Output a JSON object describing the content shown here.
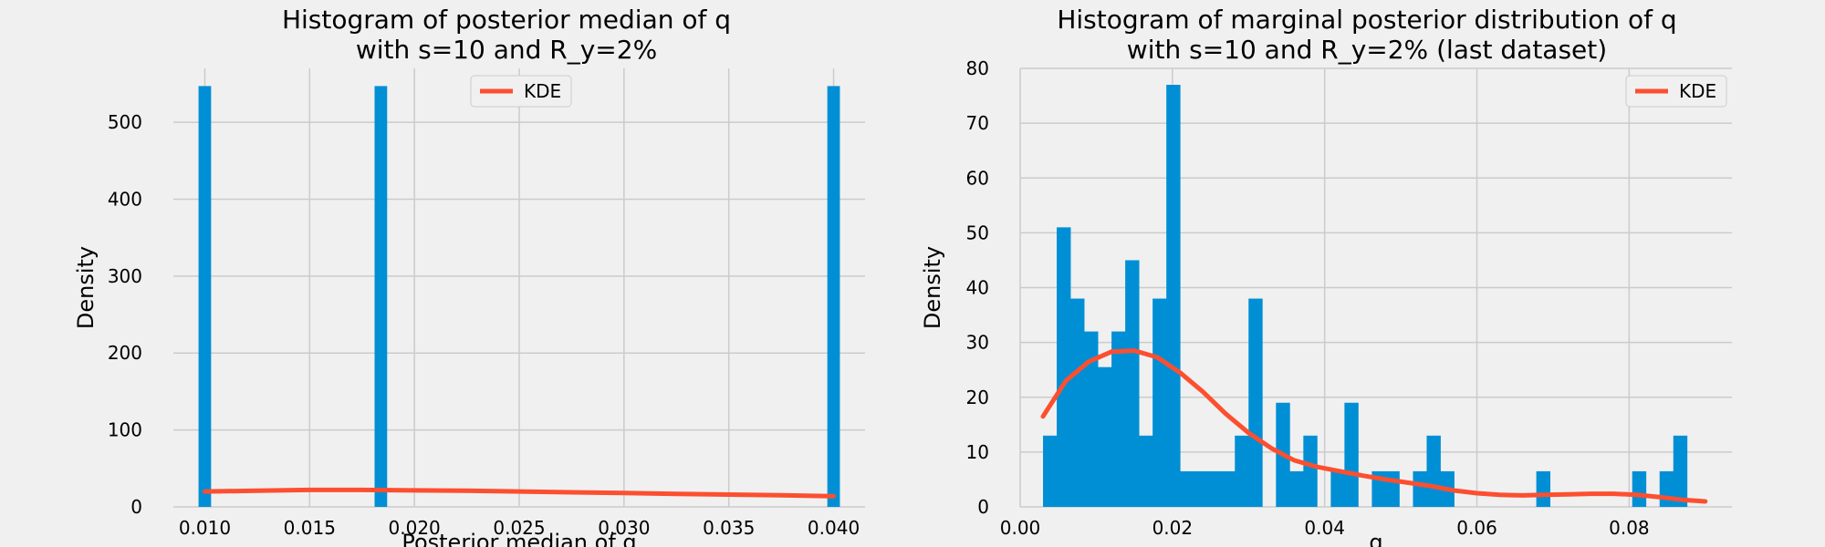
{
  "colors": {
    "background": "#f0f0f0",
    "bar": "#008fd5",
    "kde": "#fc4f30",
    "grid": "#cbcbcb"
  },
  "chart_data": [
    {
      "type": "bar",
      "title": "Histogram of posterior median of q\nwith s=10 and R_y=2%",
      "xlabel": "Posterior median of q",
      "ylabel": "Density",
      "xlim": [
        0.0085,
        0.0415
      ],
      "ylim": [
        0,
        570
      ],
      "xticks": [
        0.01,
        0.015,
        0.02,
        0.025,
        0.03,
        0.035,
        0.04
      ],
      "xtick_labels": [
        "0.010",
        "0.015",
        "0.020",
        "0.025",
        "0.030",
        "0.035",
        "0.040"
      ],
      "yticks": [
        0,
        100,
        200,
        300,
        400,
        500
      ],
      "ytick_labels": [
        "0",
        "100",
        "200",
        "300",
        "400",
        "500"
      ],
      "bin_width": 0.0006,
      "bars": [
        {
          "x": 0.01,
          "value": 547
        },
        {
          "x": 0.0184,
          "value": 547
        },
        {
          "x": 0.04,
          "value": 547
        }
      ],
      "kde": {
        "name": "KDE",
        "x": [
          0.01,
          0.0125,
          0.015,
          0.0175,
          0.02,
          0.0225,
          0.025,
          0.0275,
          0.03,
          0.0325,
          0.035,
          0.0375,
          0.04
        ],
        "y": [
          20,
          21,
          22,
          22,
          21.5,
          21,
          20,
          19,
          18,
          17,
          16,
          15,
          14
        ]
      },
      "legend": "upper center",
      "grid": true
    },
    {
      "type": "bar",
      "title": "Histogram of marginal posterior distribution of q\nwith s=10 and R_y=2% (last dataset)",
      "xlabel": "q",
      "ylabel": "Density",
      "xlim": [
        0.0,
        0.0935
      ],
      "ylim": [
        0,
        80
      ],
      "xticks": [
        0.0,
        0.02,
        0.04,
        0.06,
        0.08
      ],
      "xtick_labels": [
        "0.00",
        "0.02",
        "0.04",
        "0.06",
        "0.08"
      ],
      "yticks": [
        0,
        10,
        20,
        30,
        40,
        50,
        60,
        70,
        80
      ],
      "ytick_labels": [
        "0",
        "10",
        "20",
        "30",
        "40",
        "50",
        "60",
        "70",
        "80"
      ],
      "bin_start": 0.003,
      "bin_width": 0.0018,
      "values": [
        13,
        51,
        38,
        32,
        25.5,
        32,
        45,
        13,
        38,
        77,
        6.5,
        6.5,
        6.5,
        6.5,
        13,
        38,
        0,
        19,
        6.5,
        13,
        0,
        6.5,
        19,
        0,
        6.5,
        6.5,
        0,
        6.5,
        13,
        6.5,
        0,
        0,
        0,
        0,
        0,
        0,
        6.5,
        0,
        0,
        0,
        0,
        0,
        0,
        6.5,
        0,
        6.5,
        13,
        0,
        0,
        0
      ],
      "kde": {
        "name": "KDE",
        "x": [
          0.003,
          0.006,
          0.009,
          0.012,
          0.015,
          0.018,
          0.021,
          0.024,
          0.027,
          0.03,
          0.033,
          0.036,
          0.039,
          0.042,
          0.045,
          0.048,
          0.051,
          0.054,
          0.057,
          0.06,
          0.063,
          0.066,
          0.069,
          0.072,
          0.075,
          0.078,
          0.081,
          0.084,
          0.087,
          0.09
        ],
        "y": [
          16.5,
          23,
          26.5,
          28.3,
          28.5,
          27.3,
          24.5,
          21,
          17,
          13.5,
          10.7,
          8.5,
          7.3,
          6.5,
          5.7,
          5,
          4.4,
          3.8,
          3,
          2.5,
          2.2,
          2.1,
          2.2,
          2.3,
          2.4,
          2.4,
          2.2,
          1.8,
          1.3,
          1.0
        ]
      },
      "legend": "upper right",
      "grid": true
    }
  ]
}
